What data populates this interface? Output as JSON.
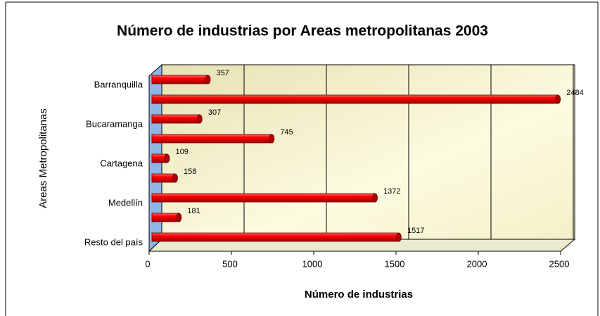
{
  "chart_data": {
    "type": "bar",
    "orientation": "horizontal",
    "title": "Número de industrias por Areas metropolitanas  2003",
    "x_label": "Número de industrias",
    "y_label": "Areas Metropolitanas",
    "categories": [
      "Barranquilla",
      null,
      "Bucaramanga",
      null,
      "Cartagena",
      null,
      "Medellín",
      null,
      "Resto del país"
    ],
    "values": [
      357,
      2484,
      307,
      745,
      109,
      158,
      1372,
      181,
      1517
    ],
    "color": "#ff0000",
    "xlim": [
      0,
      2500
    ],
    "xticks": [
      0,
      500,
      1000,
      1500,
      2000,
      2500
    ],
    "grid": true
  }
}
